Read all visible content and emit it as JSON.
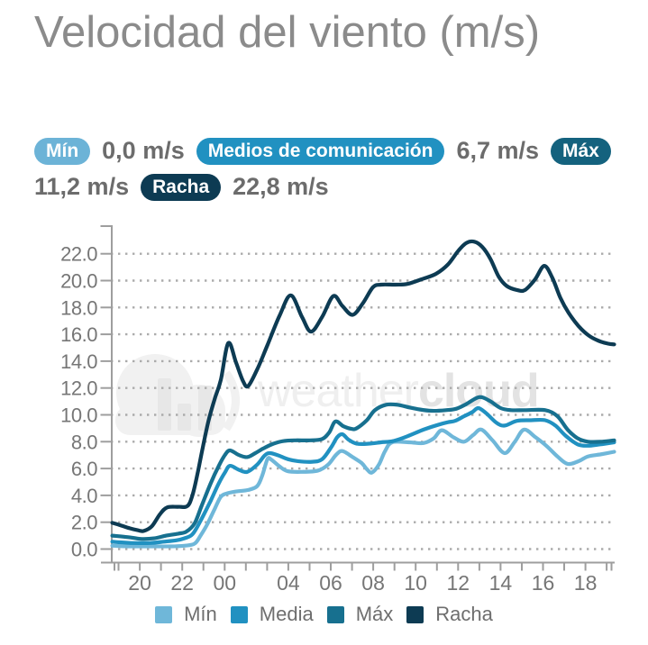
{
  "title": "Velocidad del viento (m/s)",
  "stats": {
    "min_label": "Mín",
    "min_value": "0,0 m/s",
    "media_label": "Medios de comunicación",
    "media_value": "6,7 m/s",
    "max_label": "Máx",
    "max_value": "11,2 m/s",
    "racha_label": "Racha",
    "racha_value": "22,8 m/s",
    "badge_colors": {
      "min": "#6cb3d7",
      "media": "#2191c1",
      "max": "#14627e",
      "racha": "#0d3b53"
    }
  },
  "watermark": {
    "brand_light": "weather",
    "brand_bold": "cloud"
  },
  "legend": [
    {
      "key": "min",
      "label": "Mín",
      "color": "#6fb7d9"
    },
    {
      "key": "media",
      "label": "Media",
      "color": "#2191c1"
    },
    {
      "key": "max",
      "label": "Máx",
      "color": "#17708f"
    },
    {
      "key": "racha",
      "label": "Racha",
      "color": "#0d3b53"
    }
  ],
  "chart_data": {
    "type": "line",
    "title": "Velocidad del viento (m/s)",
    "x_unit": "apparent hours since 19:00 on the displayed 24h axis (hour slot 02 missing from records, label skipped)",
    "y_unit": "m/s",
    "x_range_hours": [
      -0.42,
      24.42
    ],
    "y_range": [
      0,
      24.13
    ],
    "grid": "dotted horizontal lines every 2 m/s",
    "y_tick_labels": [
      "0.0",
      "2.0",
      "4.0",
      "6.0",
      "8.0",
      "10.0",
      "12.0",
      "14.0",
      "16.0",
      "18.0",
      "20.0",
      "22.0"
    ],
    "x_ticks": [
      {
        "slot": 1,
        "label": "20"
      },
      {
        "slot": 3,
        "label": "22"
      },
      {
        "slot": 5,
        "label": "00"
      },
      {
        "slot": 8,
        "label": "04"
      },
      {
        "slot": 10,
        "label": "06"
      },
      {
        "slot": 12,
        "label": "08"
      },
      {
        "slot": 14,
        "label": "10"
      },
      {
        "slot": 16,
        "label": "12"
      },
      {
        "slot": 18,
        "label": "14"
      },
      {
        "slot": 20,
        "label": "16"
      },
      {
        "slot": 22,
        "label": "18"
      }
    ],
    "x_slot_count": 24,
    "series": [
      {
        "key": "min",
        "name": "Mín",
        "color": "#6fb7d9",
        "points": [
          [
            -0.35,
            0.25
          ],
          [
            0.5,
            0.2
          ],
          [
            1.5,
            0.2
          ],
          [
            2.5,
            0.2
          ],
          [
            3.2,
            0.25
          ],
          [
            3.7,
            0.4
          ],
          [
            4.0,
            1.0
          ],
          [
            4.35,
            1.9
          ],
          [
            4.7,
            3.0
          ],
          [
            5.0,
            3.9
          ],
          [
            5.3,
            4.15
          ],
          [
            5.8,
            4.3
          ],
          [
            6.35,
            4.4
          ],
          [
            6.8,
            4.7
          ],
          [
            7.05,
            5.5
          ],
          [
            7.3,
            6.7
          ],
          [
            7.5,
            6.65
          ],
          [
            7.9,
            6.15
          ],
          [
            8.3,
            5.8
          ],
          [
            9.0,
            5.75
          ],
          [
            9.8,
            5.85
          ],
          [
            10.3,
            6.3
          ],
          [
            10.7,
            7.05
          ],
          [
            11.0,
            7.3
          ],
          [
            11.5,
            6.85
          ],
          [
            11.95,
            6.4
          ],
          [
            12.2,
            5.95
          ],
          [
            12.45,
            5.7
          ],
          [
            12.8,
            6.3
          ],
          [
            13.1,
            7.3
          ],
          [
            13.45,
            7.95
          ],
          [
            14.3,
            7.95
          ],
          [
            15.0,
            7.9
          ],
          [
            15.5,
            8.25
          ],
          [
            15.9,
            8.85
          ],
          [
            16.5,
            8.3
          ],
          [
            17.0,
            8.0
          ],
          [
            17.45,
            8.5
          ],
          [
            17.85,
            8.9
          ],
          [
            18.4,
            8.1
          ],
          [
            19.0,
            7.15
          ],
          [
            19.5,
            8.0
          ],
          [
            19.95,
            8.9
          ],
          [
            20.5,
            8.35
          ],
          [
            21.05,
            7.7
          ],
          [
            21.6,
            6.9
          ],
          [
            22.1,
            6.35
          ],
          [
            22.65,
            6.55
          ],
          [
            23.1,
            6.9
          ],
          [
            23.7,
            7.05
          ],
          [
            24.4,
            7.25
          ]
        ]
      },
      {
        "key": "media",
        "name": "Media",
        "color": "#2191c1",
        "points": [
          [
            -0.35,
            0.55
          ],
          [
            0,
            0.5
          ],
          [
            0.7,
            0.45
          ],
          [
            1.5,
            0.45
          ],
          [
            2.2,
            0.55
          ],
          [
            2.8,
            0.65
          ],
          [
            3.2,
            0.8
          ],
          [
            3.6,
            1.1
          ],
          [
            4.0,
            2.1
          ],
          [
            4.5,
            3.6
          ],
          [
            4.9,
            4.9
          ],
          [
            5.2,
            5.7
          ],
          [
            5.45,
            6.2
          ],
          [
            5.9,
            5.9
          ],
          [
            6.3,
            5.75
          ],
          [
            6.8,
            6.3
          ],
          [
            7.15,
            6.95
          ],
          [
            7.4,
            7.15
          ],
          [
            7.8,
            7.0
          ],
          [
            8.3,
            6.7
          ],
          [
            8.8,
            6.55
          ],
          [
            9.5,
            6.5
          ],
          [
            10.0,
            6.7
          ],
          [
            10.45,
            7.6
          ],
          [
            10.75,
            8.35
          ],
          [
            11.0,
            8.55
          ],
          [
            11.3,
            8.15
          ],
          [
            11.7,
            7.85
          ],
          [
            12.3,
            7.85
          ],
          [
            12.9,
            7.95
          ],
          [
            13.5,
            8.05
          ],
          [
            14.2,
            8.4
          ],
          [
            15.0,
            8.9
          ],
          [
            15.7,
            9.25
          ],
          [
            16.2,
            9.45
          ],
          [
            16.55,
            9.55
          ],
          [
            17.0,
            9.9
          ],
          [
            17.4,
            10.2
          ],
          [
            17.7,
            10.5
          ],
          [
            18.1,
            10.1
          ],
          [
            18.6,
            9.4
          ],
          [
            19.0,
            9.2
          ],
          [
            19.6,
            9.55
          ],
          [
            20.3,
            9.6
          ],
          [
            21.0,
            9.6
          ],
          [
            21.5,
            9.2
          ],
          [
            22.0,
            8.45
          ],
          [
            22.6,
            7.8
          ],
          [
            23.1,
            7.7
          ],
          [
            23.7,
            7.8
          ],
          [
            24.4,
            7.95
          ]
        ]
      },
      {
        "key": "max",
        "name": "Máx",
        "color": "#17708f",
        "points": [
          [
            -0.35,
            1.0
          ],
          [
            0,
            0.95
          ],
          [
            0.6,
            0.85
          ],
          [
            1.1,
            0.75
          ],
          [
            1.7,
            0.8
          ],
          [
            2.3,
            1.0
          ],
          [
            2.9,
            1.15
          ],
          [
            3.3,
            1.3
          ],
          [
            3.7,
            1.9
          ],
          [
            4.05,
            3.2
          ],
          [
            4.5,
            4.9
          ],
          [
            4.9,
            6.2
          ],
          [
            5.2,
            7.0
          ],
          [
            5.45,
            7.35
          ],
          [
            5.9,
            7.0
          ],
          [
            6.3,
            6.85
          ],
          [
            6.7,
            7.15
          ],
          [
            7.1,
            7.5
          ],
          [
            7.6,
            7.85
          ],
          [
            8.1,
            8.05
          ],
          [
            8.7,
            8.1
          ],
          [
            9.4,
            8.1
          ],
          [
            10.0,
            8.2
          ],
          [
            10.35,
            8.7
          ],
          [
            10.65,
            9.5
          ],
          [
            11.05,
            9.15
          ],
          [
            11.45,
            8.95
          ],
          [
            11.7,
            9.0
          ],
          [
            12.2,
            9.6
          ],
          [
            12.6,
            10.35
          ],
          [
            13.15,
            10.75
          ],
          [
            13.7,
            10.75
          ],
          [
            14.3,
            10.55
          ],
          [
            14.8,
            10.4
          ],
          [
            15.4,
            10.3
          ],
          [
            16.1,
            10.35
          ],
          [
            16.6,
            10.45
          ],
          [
            17.1,
            10.8
          ],
          [
            17.6,
            11.25
          ],
          [
            17.9,
            11.3
          ],
          [
            18.3,
            11.0
          ],
          [
            18.8,
            10.5
          ],
          [
            19.3,
            10.35
          ],
          [
            20.0,
            10.35
          ],
          [
            21.0,
            10.35
          ],
          [
            21.6,
            9.9
          ],
          [
            22.1,
            8.9
          ],
          [
            22.6,
            8.25
          ],
          [
            23.1,
            8.0
          ],
          [
            23.8,
            8.0
          ],
          [
            24.4,
            8.1
          ]
        ]
      },
      {
        "key": "racha",
        "name": "Racha",
        "color": "#0d3b53",
        "points": [
          [
            -0.35,
            1.95
          ],
          [
            0,
            1.8
          ],
          [
            0.5,
            1.55
          ],
          [
            0.9,
            1.4
          ],
          [
            1.2,
            1.35
          ],
          [
            1.6,
            1.7
          ],
          [
            2.0,
            2.6
          ],
          [
            2.35,
            3.1
          ],
          [
            2.9,
            3.15
          ],
          [
            3.35,
            3.2
          ],
          [
            3.6,
            4.0
          ],
          [
            3.85,
            5.6
          ],
          [
            4.1,
            7.5
          ],
          [
            4.4,
            9.6
          ],
          [
            4.7,
            11.2
          ],
          [
            5.0,
            12.6
          ],
          [
            5.37,
            15.35
          ],
          [
            5.75,
            13.9
          ],
          [
            6.1,
            12.5
          ],
          [
            6.35,
            12.15
          ],
          [
            6.8,
            13.4
          ],
          [
            7.3,
            15.2
          ],
          [
            7.9,
            17.4
          ],
          [
            8.45,
            18.9
          ],
          [
            9.0,
            17.3
          ],
          [
            9.45,
            16.2
          ],
          [
            10.0,
            17.3
          ],
          [
            10.55,
            18.85
          ],
          [
            11.0,
            18.1
          ],
          [
            11.5,
            17.45
          ],
          [
            12.0,
            18.3
          ],
          [
            12.5,
            19.5
          ],
          [
            12.9,
            19.7
          ],
          [
            13.6,
            19.7
          ],
          [
            14.2,
            19.75
          ],
          [
            14.9,
            20.1
          ],
          [
            15.6,
            20.5
          ],
          [
            16.2,
            21.2
          ],
          [
            16.7,
            22.2
          ],
          [
            17.1,
            22.8
          ],
          [
            17.5,
            22.9
          ],
          [
            17.9,
            22.5
          ],
          [
            18.3,
            21.6
          ],
          [
            18.7,
            20.3
          ],
          [
            19.1,
            19.6
          ],
          [
            19.6,
            19.3
          ],
          [
            20.0,
            19.3
          ],
          [
            20.5,
            20.1
          ],
          [
            20.95,
            21.1
          ],
          [
            21.35,
            20.2
          ],
          [
            21.75,
            18.7
          ],
          [
            22.15,
            17.6
          ],
          [
            22.65,
            16.6
          ],
          [
            23.15,
            15.9
          ],
          [
            23.65,
            15.5
          ],
          [
            24.1,
            15.3
          ],
          [
            24.4,
            15.25
          ]
        ]
      }
    ]
  }
}
